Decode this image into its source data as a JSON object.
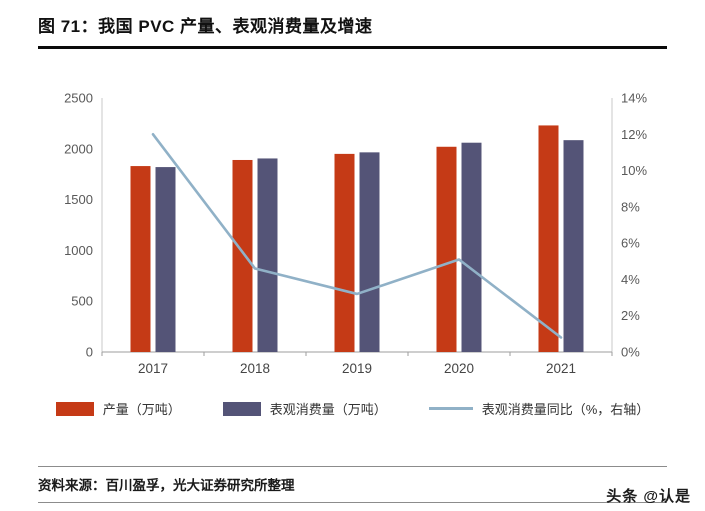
{
  "title": "图 71：我国 PVC 产量、表观消费量及增速",
  "source": "资料来源：百川盈孚，光大证券研究所整理",
  "watermark": "头条 @认是",
  "colors": {
    "production_bar": "#c53a16",
    "consumption_bar": "#545477",
    "yoy_line": "#90b1c7",
    "axis_line": "#c9c9c9",
    "baseline": "#9e9e9e",
    "title_rule": "#0a0a0a"
  },
  "chart_data": {
    "type": "bar",
    "subtype": "grouped-bars-with-line",
    "categories": [
      "2017",
      "2018",
      "2019",
      "2020",
      "2021"
    ],
    "series": [
      {
        "name": "产量（万吨）",
        "type": "bar",
        "axis": "left",
        "color": "#c53a16",
        "values": [
          1830,
          1890,
          1950,
          2020,
          2230
        ]
      },
      {
        "name": "表观消费量（万吨）",
        "type": "bar",
        "axis": "left",
        "color": "#545477",
        "values": [
          1820,
          1905,
          1965,
          2060,
          2085
        ]
      },
      {
        "name": "表观消费量同比（%，右轴）",
        "type": "line",
        "axis": "right",
        "color": "#90b1c7",
        "values": [
          12.0,
          4.6,
          3.2,
          5.1,
          0.8
        ]
      }
    ],
    "left_axis": {
      "min": 0,
      "max": 2500,
      "step": 500,
      "ticks": [
        "0",
        "500",
        "1000",
        "1500",
        "2000",
        "2500"
      ]
    },
    "right_axis": {
      "min": 0,
      "max": 14,
      "step": 2,
      "ticks": [
        "0%",
        "2%",
        "4%",
        "6%",
        "8%",
        "10%",
        "12%",
        "14%"
      ]
    },
    "grid": false,
    "legend_position": "bottom"
  }
}
